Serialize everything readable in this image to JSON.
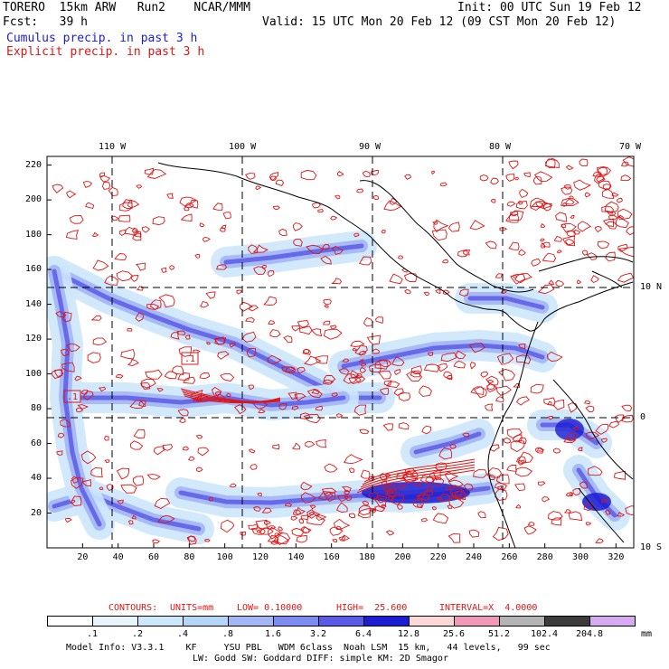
{
  "header": {
    "line1_left": "TORERO  15km ARW   Run2    NCAR/MMM",
    "line1_right": "Init: 00 UTC Sun 19 Feb 12",
    "line2_left": "Fcst:   39 h",
    "line2_right": "Valid: 15 UTC Mon 20 Feb 12 (09 CST Mon 20 Feb 12)",
    "line3": "Cumulus precip. in past 3 h",
    "line4": "Explicit precip. in past 3 h"
  },
  "chart_data": {
    "type": "heatmap",
    "title": "Cumulus precip. in past 3 h / Explicit precip. in past 3 h",
    "x_grid_ticks": [
      "20",
      "40",
      "60",
      "80",
      "100",
      "120",
      "140",
      "160",
      "180",
      "200",
      "220",
      "240",
      "260",
      "280",
      "300",
      "320"
    ],
    "y_grid_ticks": [
      "20",
      "40",
      "60",
      "80",
      "100",
      "120",
      "140",
      "160",
      "180",
      "200",
      "220"
    ],
    "xlim": [
      0,
      330
    ],
    "ylim": [
      0,
      225
    ],
    "longitude_labels": [
      "110 W",
      "100 W",
      "90 W",
      "80 W",
      "70 W"
    ],
    "longitude_values": [
      -110,
      -100,
      -90,
      -80,
      -70
    ],
    "latitude_labels": [
      "10 N",
      "0",
      "10 S"
    ],
    "latitude_values": [
      10,
      0,
      -10
    ],
    "shaded_field": "Cumulus precip. in past 3 h",
    "contour_field": "Explicit precip. in past 3 h",
    "box_labels": [
      ".1",
      ".1"
    ],
    "contours": {
      "label": "CONTOURS:",
      "units_text": "UNITS=mm",
      "low_text": "LOW= 0.10000",
      "high_text": "HIGH=  25.600",
      "interval_text": "INTERVAL=X  4.0000",
      "low": 0.1,
      "high": 25.6,
      "interval_factor": 4.0
    },
    "colorbar": {
      "levels": [
        ".1",
        ".2",
        ".4",
        ".8",
        "1.6",
        "3.2",
        "6.4",
        "12.8",
        "25.6",
        "51.2",
        "102.4",
        "204.8"
      ],
      "colors": [
        "#ffffff",
        "#e8f4fc",
        "#cde7fb",
        "#b4d7f7",
        "#a3b6f6",
        "#7c8cf0",
        "#5a5ae6",
        "#1c1cd2",
        "#fcd8d8",
        "#f098b8",
        "#b4b4b4",
        "#3c3c3c",
        "#d6aaf0"
      ],
      "units": "mm"
    }
  },
  "footer": {
    "line1": "Model Info: V3.3.1    KF     YSU PBL   WDM 6class  Noah LSM  15 km,   44 levels,   99 sec",
    "line2": "LW: Godd SW: Goddard DIFF: simple KM: 2D Smagor"
  }
}
